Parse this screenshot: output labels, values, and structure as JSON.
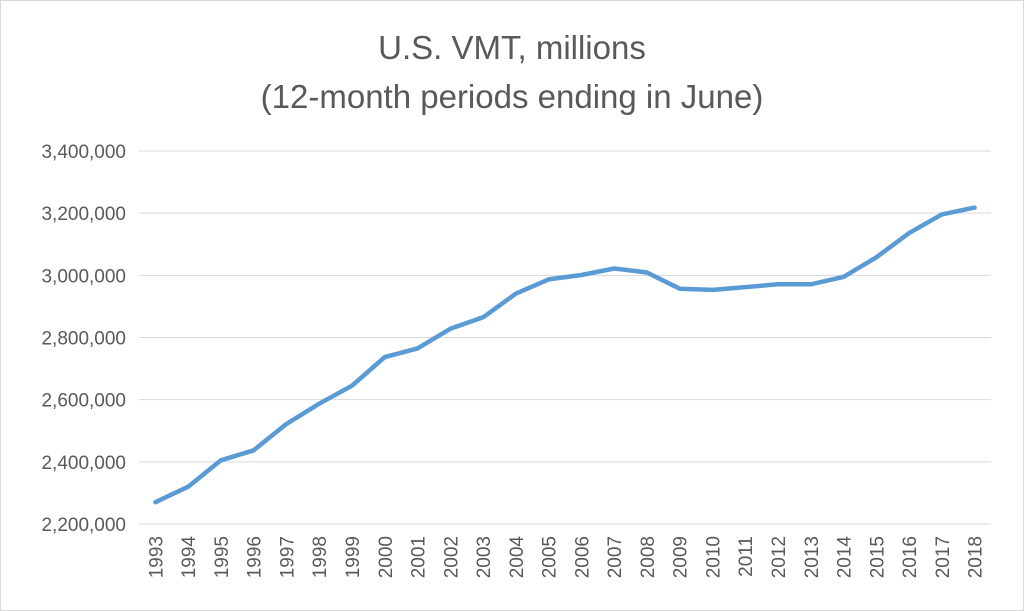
{
  "chart_data": {
    "type": "line",
    "title": "U.S. VMT, millions",
    "subtitle": "(12-month periods ending in June)",
    "xlabel": "",
    "ylabel": "",
    "categories": [
      "1993",
      "1994",
      "1995",
      "1996",
      "1997",
      "1998",
      "1999",
      "2000",
      "2001",
      "2002",
      "2003",
      "2004",
      "2005",
      "2006",
      "2007",
      "2008",
      "2009",
      "2010",
      "2011",
      "2012",
      "2013",
      "2014",
      "2015",
      "2016",
      "2017",
      "2018"
    ],
    "series": [
      {
        "values": [
          2270000,
          2320000,
          2405000,
          2437000,
          2522000,
          2587000,
          2645000,
          2737000,
          2765000,
          2828000,
          2865000,
          2941000,
          2987000,
          3001000,
          3022000,
          3009000,
          2957000,
          2953000,
          2962000,
          2971000,
          2971000,
          2995000,
          3058000,
          3136000,
          3196000,
          3218000
        ],
        "color": "#5b9bd5"
      }
    ],
    "ylim": [
      2200000,
      3400000
    ],
    "yticks": [
      2200000,
      2400000,
      2600000,
      2800000,
      3000000,
      3200000,
      3400000
    ],
    "ytick_labels": [
      "2,200,000",
      "2,400,000",
      "2,600,000",
      "2,800,000",
      "3,000,000",
      "3,200,000",
      "3,400,000"
    ],
    "grid": true,
    "legend": "none"
  }
}
